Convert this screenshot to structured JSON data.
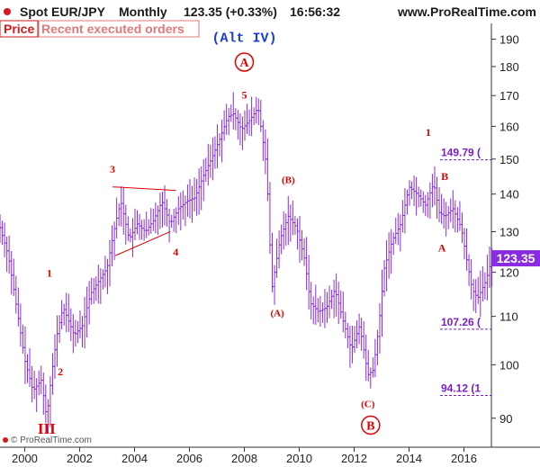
{
  "header": {
    "instrument": "Spot EUR/JPY",
    "period": "Monthly",
    "last_change": "123.35 (+0.33%)",
    "time": "16:56:32",
    "site": "www.ProRealTime.com"
  },
  "tabs": [
    {
      "label": "Price"
    },
    {
      "label": "Recent executed orders"
    }
  ],
  "watermark": "© ProRealTime.com",
  "chart_data": {
    "type": "ohlc",
    "title": "Spot EUR/JPY Monthly",
    "series_color": "#8a2be2",
    "x_ticks": [
      "2000",
      "2002",
      "2004",
      "2006",
      "2008",
      "2010",
      "2012",
      "2014",
      "2016"
    ],
    "y_ticks": [
      "90",
      "100",
      "110",
      "120",
      "130",
      "140",
      "150",
      "160",
      "170",
      "180",
      "190"
    ],
    "y_scale": "log",
    "ylim": [
      85,
      196
    ],
    "xlim": [
      1999.1,
      2017.0
    ],
    "last_price": "123.35",
    "price_path": [
      [
        1999.1,
        131
      ],
      [
        1999.4,
        124
      ],
      [
        1999.7,
        112
      ],
      [
        2000.0,
        101
      ],
      [
        2000.3,
        95
      ],
      [
        2000.6,
        97
      ],
      [
        2000.8,
        90
      ],
      [
        2001.0,
        99
      ],
      [
        2001.2,
        107
      ],
      [
        2001.4,
        112
      ],
      [
        2001.6,
        109
      ],
      [
        2001.8,
        106
      ],
      [
        2002.1,
        108
      ],
      [
        2002.4,
        115
      ],
      [
        2002.7,
        118
      ],
      [
        2003.0,
        121
      ],
      [
        2003.3,
        132
      ],
      [
        2003.5,
        138
      ],
      [
        2003.8,
        128
      ],
      [
        2004.1,
        132
      ],
      [
        2004.4,
        130
      ],
      [
        2004.7,
        133
      ],
      [
        2005.0,
        138
      ],
      [
        2005.3,
        132
      ],
      [
        2005.6,
        136
      ],
      [
        2005.9,
        138
      ],
      [
        2006.2,
        139
      ],
      [
        2006.5,
        145
      ],
      [
        2006.8,
        150
      ],
      [
        2007.1,
        156
      ],
      [
        2007.4,
        163
      ],
      [
        2007.6,
        164
      ],
      [
        2007.9,
        159
      ],
      [
        2008.2,
        162
      ],
      [
        2008.5,
        166
      ],
      [
        2008.8,
        148
      ],
      [
        2009.0,
        116
      ],
      [
        2009.3,
        128
      ],
      [
        2009.6,
        134
      ],
      [
        2009.9,
        131
      ],
      [
        2010.2,
        123
      ],
      [
        2010.4,
        113
      ],
      [
        2010.7,
        111
      ],
      [
        2011.0,
        112
      ],
      [
        2011.3,
        116
      ],
      [
        2011.6,
        109
      ],
      [
        2011.9,
        103
      ],
      [
        2012.2,
        108
      ],
      [
        2012.5,
        98
      ],
      [
        2012.7,
        99
      ],
      [
        2012.9,
        108
      ],
      [
        2013.1,
        121
      ],
      [
        2013.4,
        128
      ],
      [
        2013.7,
        132
      ],
      [
        2014.0,
        142
      ],
      [
        2014.3,
        140
      ],
      [
        2014.6,
        137
      ],
      [
        2014.9,
        143
      ],
      [
        2015.1,
        135
      ],
      [
        2015.3,
        134
      ],
      [
        2015.6,
        136
      ],
      [
        2015.9,
        131
      ],
      [
        2016.1,
        123
      ],
      [
        2016.3,
        116
      ],
      [
        2016.5,
        114
      ],
      [
        2016.8,
        118
      ],
      [
        2017.0,
        123
      ]
    ],
    "levels": [
      {
        "value": 149.79,
        "label": "149.79 ("
      },
      {
        "value": 107.26,
        "label": "107.26 ("
      },
      {
        "value": 94.12,
        "label": "94.12 (1"
      }
    ],
    "annotations": [
      {
        "text": "(Alt IV)",
        "x": 2008.0,
        "y": 189
      },
      {
        "text": "A",
        "x": 2008.0,
        "y": 180,
        "circled": true
      },
      {
        "text": "5",
        "x": 2008.0,
        "y": 169
      },
      {
        "text": "3",
        "x": 2003.2,
        "y": 146
      },
      {
        "text": "4",
        "x": 2005.5,
        "y": 124
      },
      {
        "text": "1",
        "x": 2000.9,
        "y": 119
      },
      {
        "text": "2",
        "x": 2001.3,
        "y": 98
      },
      {
        "text": "III",
        "x": 2000.8,
        "y": 87.3
      },
      {
        "text": "(B)",
        "x": 2009.6,
        "y": 143
      },
      {
        "text": "(A)",
        "x": 2009.2,
        "y": 110
      },
      {
        "text": "(C)",
        "x": 2012.5,
        "y": 92
      },
      {
        "text": "B",
        "x": 2012.6,
        "y": 88,
        "circled": true
      },
      {
        "text": "1",
        "x": 2014.7,
        "y": 157
      },
      {
        "text": "B",
        "x": 2015.3,
        "y": 144
      },
      {
        "text": "A",
        "x": 2015.2,
        "y": 125
      }
    ],
    "triangle": {
      "upper": [
        [
          2003.2,
          142
        ],
        [
          2005.5,
          141
        ]
      ],
      "lower": [
        [
          2003.3,
          124
        ],
        [
          2005.3,
          130
        ]
      ]
    },
    "grid": false
  }
}
